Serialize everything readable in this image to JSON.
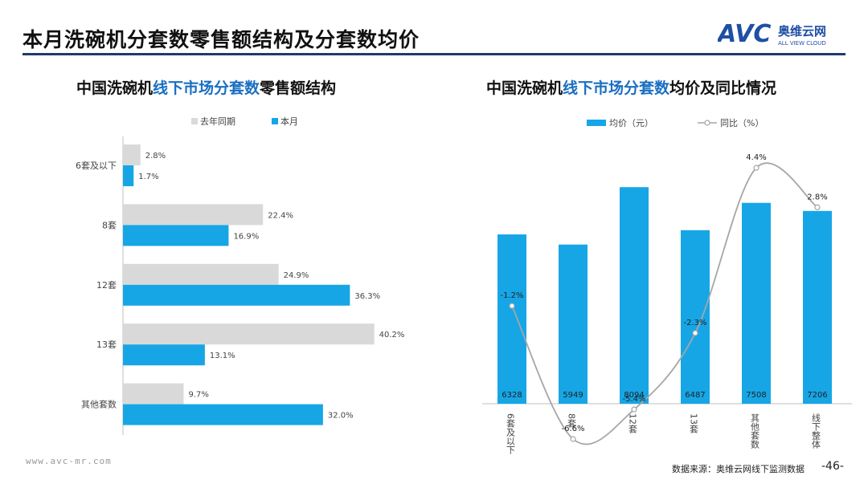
{
  "header": {
    "title": "本月洗碗机分套数零售额结构及分套数均价",
    "logo_text": "AVC",
    "logo_cn": "奥维云网",
    "logo_en": "ALL VIEW CLOUD"
  },
  "footer": {
    "website": "www.avc-mr.com",
    "source": "数据来源：奥维云网线下监测数据",
    "page": "-46-"
  },
  "colors": {
    "current": "#16a6e6",
    "last_year": "#d9d9d9",
    "line": "#a6a6a6",
    "rule": "#1f3a6e",
    "highlight": "#1a6fc2"
  },
  "left_chart": {
    "title_part1": "中国洗碗机",
    "title_part2": "线下市场分套数",
    "title_part3": "零售额结构"
  },
  "right_chart": {
    "title_part1": "中国洗碗机",
    "title_part2": "线下市场分套数",
    "title_part3": "均价及同比情况"
  },
  "chart_data": [
    {
      "type": "bar",
      "orientation": "horizontal",
      "categories": [
        "6套及以下",
        "8套",
        "12套",
        "13套",
        "其他套数"
      ],
      "series": [
        {
          "name": "去年同期",
          "values": [
            2.8,
            22.4,
            24.9,
            40.2,
            9.7
          ],
          "labels": [
            "2.8%",
            "22.4%",
            "24.9%",
            "40.2%",
            "9.7%"
          ],
          "color": "#d9d9d9"
        },
        {
          "name": "本月",
          "values": [
            1.7,
            16.9,
            36.3,
            13.1,
            32.0
          ],
          "labels": [
            "1.7%",
            "16.9%",
            "36.3%",
            "13.1%",
            "32.0%"
          ],
          "color": "#16a6e6"
        }
      ],
      "xlim": [
        0,
        45
      ],
      "legend_position": "top",
      "grid": false
    },
    {
      "type": "bar",
      "categories": [
        "6套及以下",
        "8套",
        "12套",
        "13套",
        "其他套数",
        "线下整体"
      ],
      "series": [
        {
          "name": "均价（元）",
          "type": "bar",
          "values": [
            6328,
            5949,
            8094,
            6487,
            7508,
            7206
          ],
          "color": "#16a6e6"
        },
        {
          "name": "同比（%）",
          "type": "line",
          "values": [
            -1.2,
            -6.6,
            -5.4,
            -2.3,
            4.4,
            2.8
          ],
          "labels": [
            "-1.2%",
            "-6.6%",
            "-5.4%",
            "-2.3%",
            "4.4%",
            "2.8%"
          ],
          "color": "#a6a6a6"
        }
      ],
      "ylim_bar": [
        0,
        9000
      ],
      "ylim_line": [
        -8,
        6
      ],
      "legend_position": "top",
      "grid": false
    }
  ]
}
